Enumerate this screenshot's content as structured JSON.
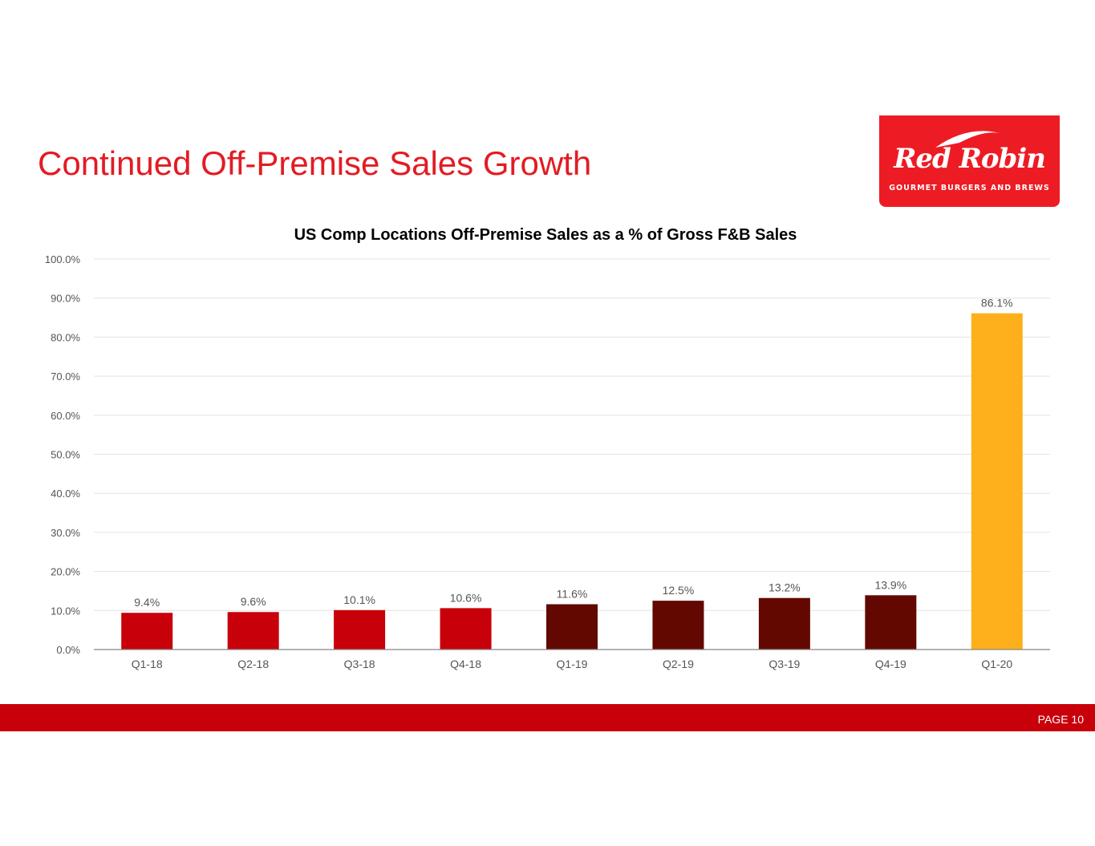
{
  "slide": {
    "title": "Continued Off-Premise Sales Growth",
    "page_label": "PAGE 10"
  },
  "logo": {
    "wordmark": "Red Robin",
    "tagline": "GOURMET BURGERS AND BREWS",
    "background": "#ed1c24"
  },
  "colors": {
    "title": "#e31b23",
    "footer": "#c8000a",
    "bar_2018": "#c8000a",
    "bar_2019": "#620800",
    "bar_2020": "#fdb01b"
  },
  "chart_data": {
    "type": "bar",
    "title": "US Comp Locations Off-Premise Sales as a % of Gross F&B Sales",
    "xlabel": "",
    "ylabel": "",
    "ylim": [
      0,
      100
    ],
    "yticks": [
      "0.0%",
      "10.0%",
      "20.0%",
      "30.0%",
      "40.0%",
      "50.0%",
      "60.0%",
      "70.0%",
      "80.0%",
      "90.0%",
      "100.0%"
    ],
    "grid": true,
    "categories": [
      "Q1-18",
      "Q2-18",
      "Q3-18",
      "Q4-18",
      "Q1-19",
      "Q2-19",
      "Q3-19",
      "Q4-19",
      "Q1-20"
    ],
    "values": [
      9.4,
      9.6,
      10.1,
      10.6,
      11.6,
      12.5,
      13.2,
      13.9,
      86.1
    ],
    "data_labels": [
      "9.4%",
      "9.6%",
      "10.1%",
      "10.6%",
      "11.6%",
      "12.5%",
      "13.2%",
      "13.9%",
      "86.1%"
    ],
    "bar_colors": [
      "#c8000a",
      "#c8000a",
      "#c8000a",
      "#c8000a",
      "#620800",
      "#620800",
      "#620800",
      "#620800",
      "#fdb01b"
    ]
  }
}
